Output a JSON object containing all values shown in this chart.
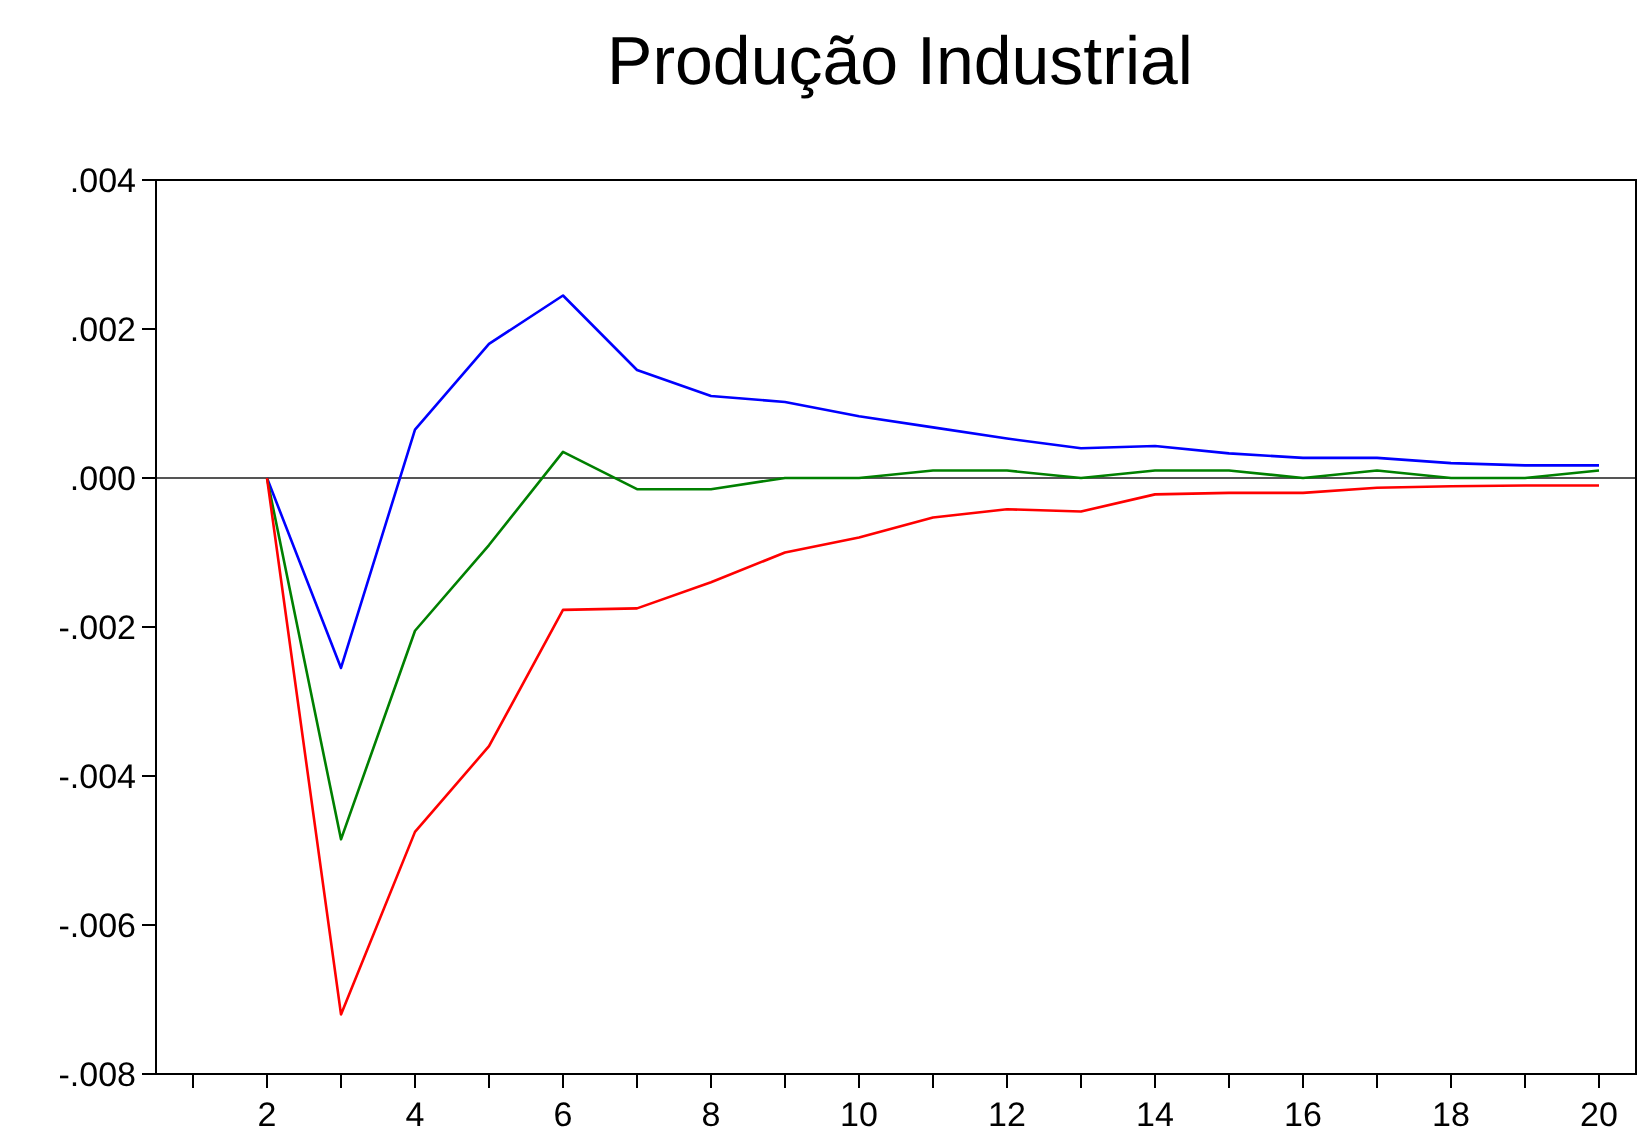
{
  "chart_data": {
    "type": "line",
    "title": "Produção Industrial",
    "x": [
      2,
      3,
      4,
      5,
      6,
      7,
      8,
      9,
      10,
      11,
      12,
      13,
      14,
      15,
      16,
      17,
      18,
      19,
      20
    ],
    "series": [
      {
        "color": "#0000ff",
        "values": [
          0,
          -0.00255,
          0.00065,
          0.0018,
          0.00245,
          0.00145,
          0.0011,
          0.00102,
          0.00083,
          0.00068,
          0.00053,
          0.0004,
          0.00043,
          0.00033,
          0.00027,
          0.00027,
          0.0002,
          0.00017,
          0.00017
        ]
      },
      {
        "color": "#008000",
        "values": [
          0,
          -0.00485,
          -0.00205,
          -0.0009,
          0.00035,
          -0.00015,
          -0.00015,
          0,
          0,
          0.0001,
          0.0001,
          0,
          0.0001,
          0.0001,
          0,
          0.0001,
          0,
          0,
          0.0001
        ]
      },
      {
        "color": "#ff0000",
        "values": [
          0,
          -0.0072,
          -0.00475,
          -0.0036,
          -0.00177,
          -0.00175,
          -0.0014,
          -0.001,
          -0.0008,
          -0.00053,
          -0.00042,
          -0.00045,
          -0.00022,
          -0.0002,
          -0.0002,
          -0.00013,
          -0.00011,
          -0.0001,
          -0.0001
        ]
      }
    ],
    "xlim": [
      0.5,
      20.5
    ],
    "xticks": [
      {
        "value": 1,
        "label": null
      },
      2,
      {
        "value": 3,
        "label": null
      },
      4,
      {
        "value": 5,
        "label": null
      },
      6,
      {
        "value": 7,
        "label": null
      },
      8,
      {
        "value": 9,
        "label": null
      },
      10,
      {
        "value": 11,
        "label": null
      },
      12,
      {
        "value": 13,
        "label": null
      },
      14,
      {
        "value": 15,
        "label": null
      },
      16,
      {
        "value": 17,
        "label": null
      },
      18,
      {
        "value": 19,
        "label": null
      },
      20
    ],
    "ylim": [
      -0.008,
      0.004
    ],
    "yticks": [
      {
        "value": -0.008,
        "label": "-.008"
      },
      {
        "value": -0.006,
        "label": "-.006"
      },
      {
        "value": -0.004,
        "label": "-.004"
      },
      {
        "value": -0.002,
        "label": "-.002"
      },
      {
        "value": 0,
        "label": ".000"
      },
      {
        "value": 0.002,
        "label": ".002"
      },
      {
        "value": 0.004,
        "label": ".004"
      }
    ],
    "ref_lines": [
      {
        "axis": "y",
        "value": 0,
        "color": "#555555"
      }
    ],
    "grid": false,
    "marker": "none",
    "line_style": "solid"
  }
}
